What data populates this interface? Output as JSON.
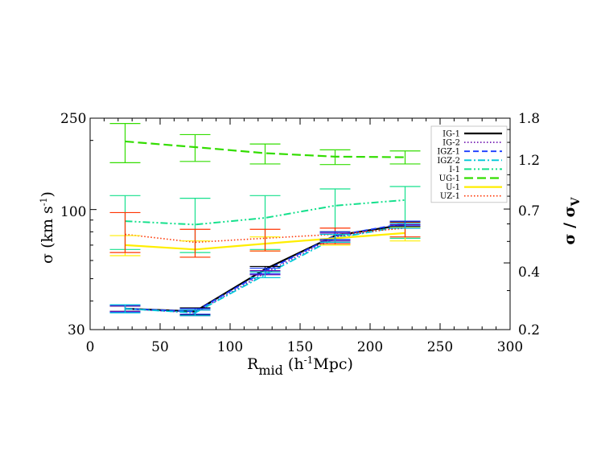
{
  "chart_data": {
    "type": "line",
    "xlabel": {
      "main": "R",
      "sub": "mid",
      "rest": " (h",
      "sup": "-1",
      "tail": "Mpc)"
    },
    "ylabel": {
      "main": "σ (km s",
      "sup": "-1",
      "tail": ")"
    },
    "y2label": {
      "main": "σ / σ",
      "sub": "V"
    },
    "xlim": [
      0,
      300
    ],
    "x_ticks": [
      "0",
      "50",
      "100",
      "150",
      "200",
      "250",
      "300"
    ],
    "ylim": [
      30,
      250
    ],
    "yscale": "log",
    "y_ticks": [
      "30",
      "100",
      "250"
    ],
    "y2lim": [
      0.2,
      1.8
    ],
    "y2scale": "log",
    "y2_ticks": [
      "0.2",
      "0.4",
      "0.7",
      "1.2",
      "1.8"
    ],
    "x": [
      25,
      75,
      125,
      175,
      225
    ],
    "legend_position": "top-right",
    "series": [
      {
        "name": "IG-1",
        "color": "#000000",
        "dash": "solid",
        "values": [
          37,
          36,
          55,
          77,
          86
        ]
      },
      {
        "name": "IG-2",
        "color": "#6a0dad",
        "dash": "dotted",
        "values": [
          37,
          35.5,
          53,
          76,
          84
        ]
      },
      {
        "name": "IGZ-1",
        "color": "#1a3cff",
        "dash": "dashed",
        "values": [
          37,
          36,
          54,
          77,
          87
        ]
      },
      {
        "name": "IGZ-2",
        "color": "#00c8d8",
        "dash": "dashdot",
        "values": [
          37,
          35.5,
          52,
          75,
          85
        ]
      },
      {
        "name": "I-1",
        "color": "#14e08c",
        "dash": "dashdotdot",
        "values": [
          89,
          86,
          92,
          104,
          110
        ]
      },
      {
        "name": "UG-1",
        "color": "#33dd00",
        "dash": "longdash",
        "values": [
          198,
          187,
          176,
          170,
          169
        ]
      },
      {
        "name": "U-1",
        "color": "#ffee00",
        "dash": "solid",
        "values": [
          70,
          67,
          71,
          75,
          79
        ]
      },
      {
        "name": "UZ-1",
        "color": "#ff3300",
        "dash": "dotted",
        "values": [
          78,
          72,
          75,
          78,
          83
        ]
      }
    ],
    "error_bars": [
      {
        "series": "UG-1",
        "color": "#33dd00",
        "low": [
          160,
          162,
          158,
          157,
          158
        ],
        "high": [
          237,
          212,
          193,
          182,
          180
        ]
      },
      {
        "series": "I-1",
        "color": "#14e08c",
        "low": [
          67,
          65,
          67,
          72,
          75
        ],
        "high": [
          115,
          112,
          115,
          123,
          126
        ]
      },
      {
        "series": "U-1",
        "color": "#ffee00",
        "low": [
          63,
          62,
          66,
          70,
          73
        ],
        "high": [
          77,
          73,
          76,
          80,
          84
        ]
      },
      {
        "series": "UZ-1",
        "color": "#ff3300",
        "low": [
          65,
          62,
          66,
          71,
          76
        ],
        "high": [
          97,
          82,
          82,
          83,
          88
        ]
      },
      {
        "series": "IG-1",
        "color": "#000000",
        "low": [
          36,
          34.7,
          53.5,
          74,
          84.5
        ],
        "high": [
          38,
          37.3,
          56.5,
          80,
          88.5
        ]
      },
      {
        "series": "IG-2",
        "color": "#6a0dad",
        "low": [
          36,
          34.5,
          52,
          73,
          83
        ],
        "high": [
          38,
          36.5,
          54.2,
          79,
          86
        ]
      },
      {
        "series": "IGZ-1",
        "color": "#1a3cff",
        "low": [
          35.7,
          35,
          52.5,
          74,
          85
        ],
        "high": [
          38.3,
          37,
          55.5,
          80,
          89
        ]
      },
      {
        "series": "IGZ-2",
        "color": "#00c8d8",
        "low": [
          35.5,
          34.5,
          50.5,
          72,
          83
        ],
        "high": [
          38.5,
          36.5,
          53.5,
          78,
          87
        ]
      }
    ]
  }
}
